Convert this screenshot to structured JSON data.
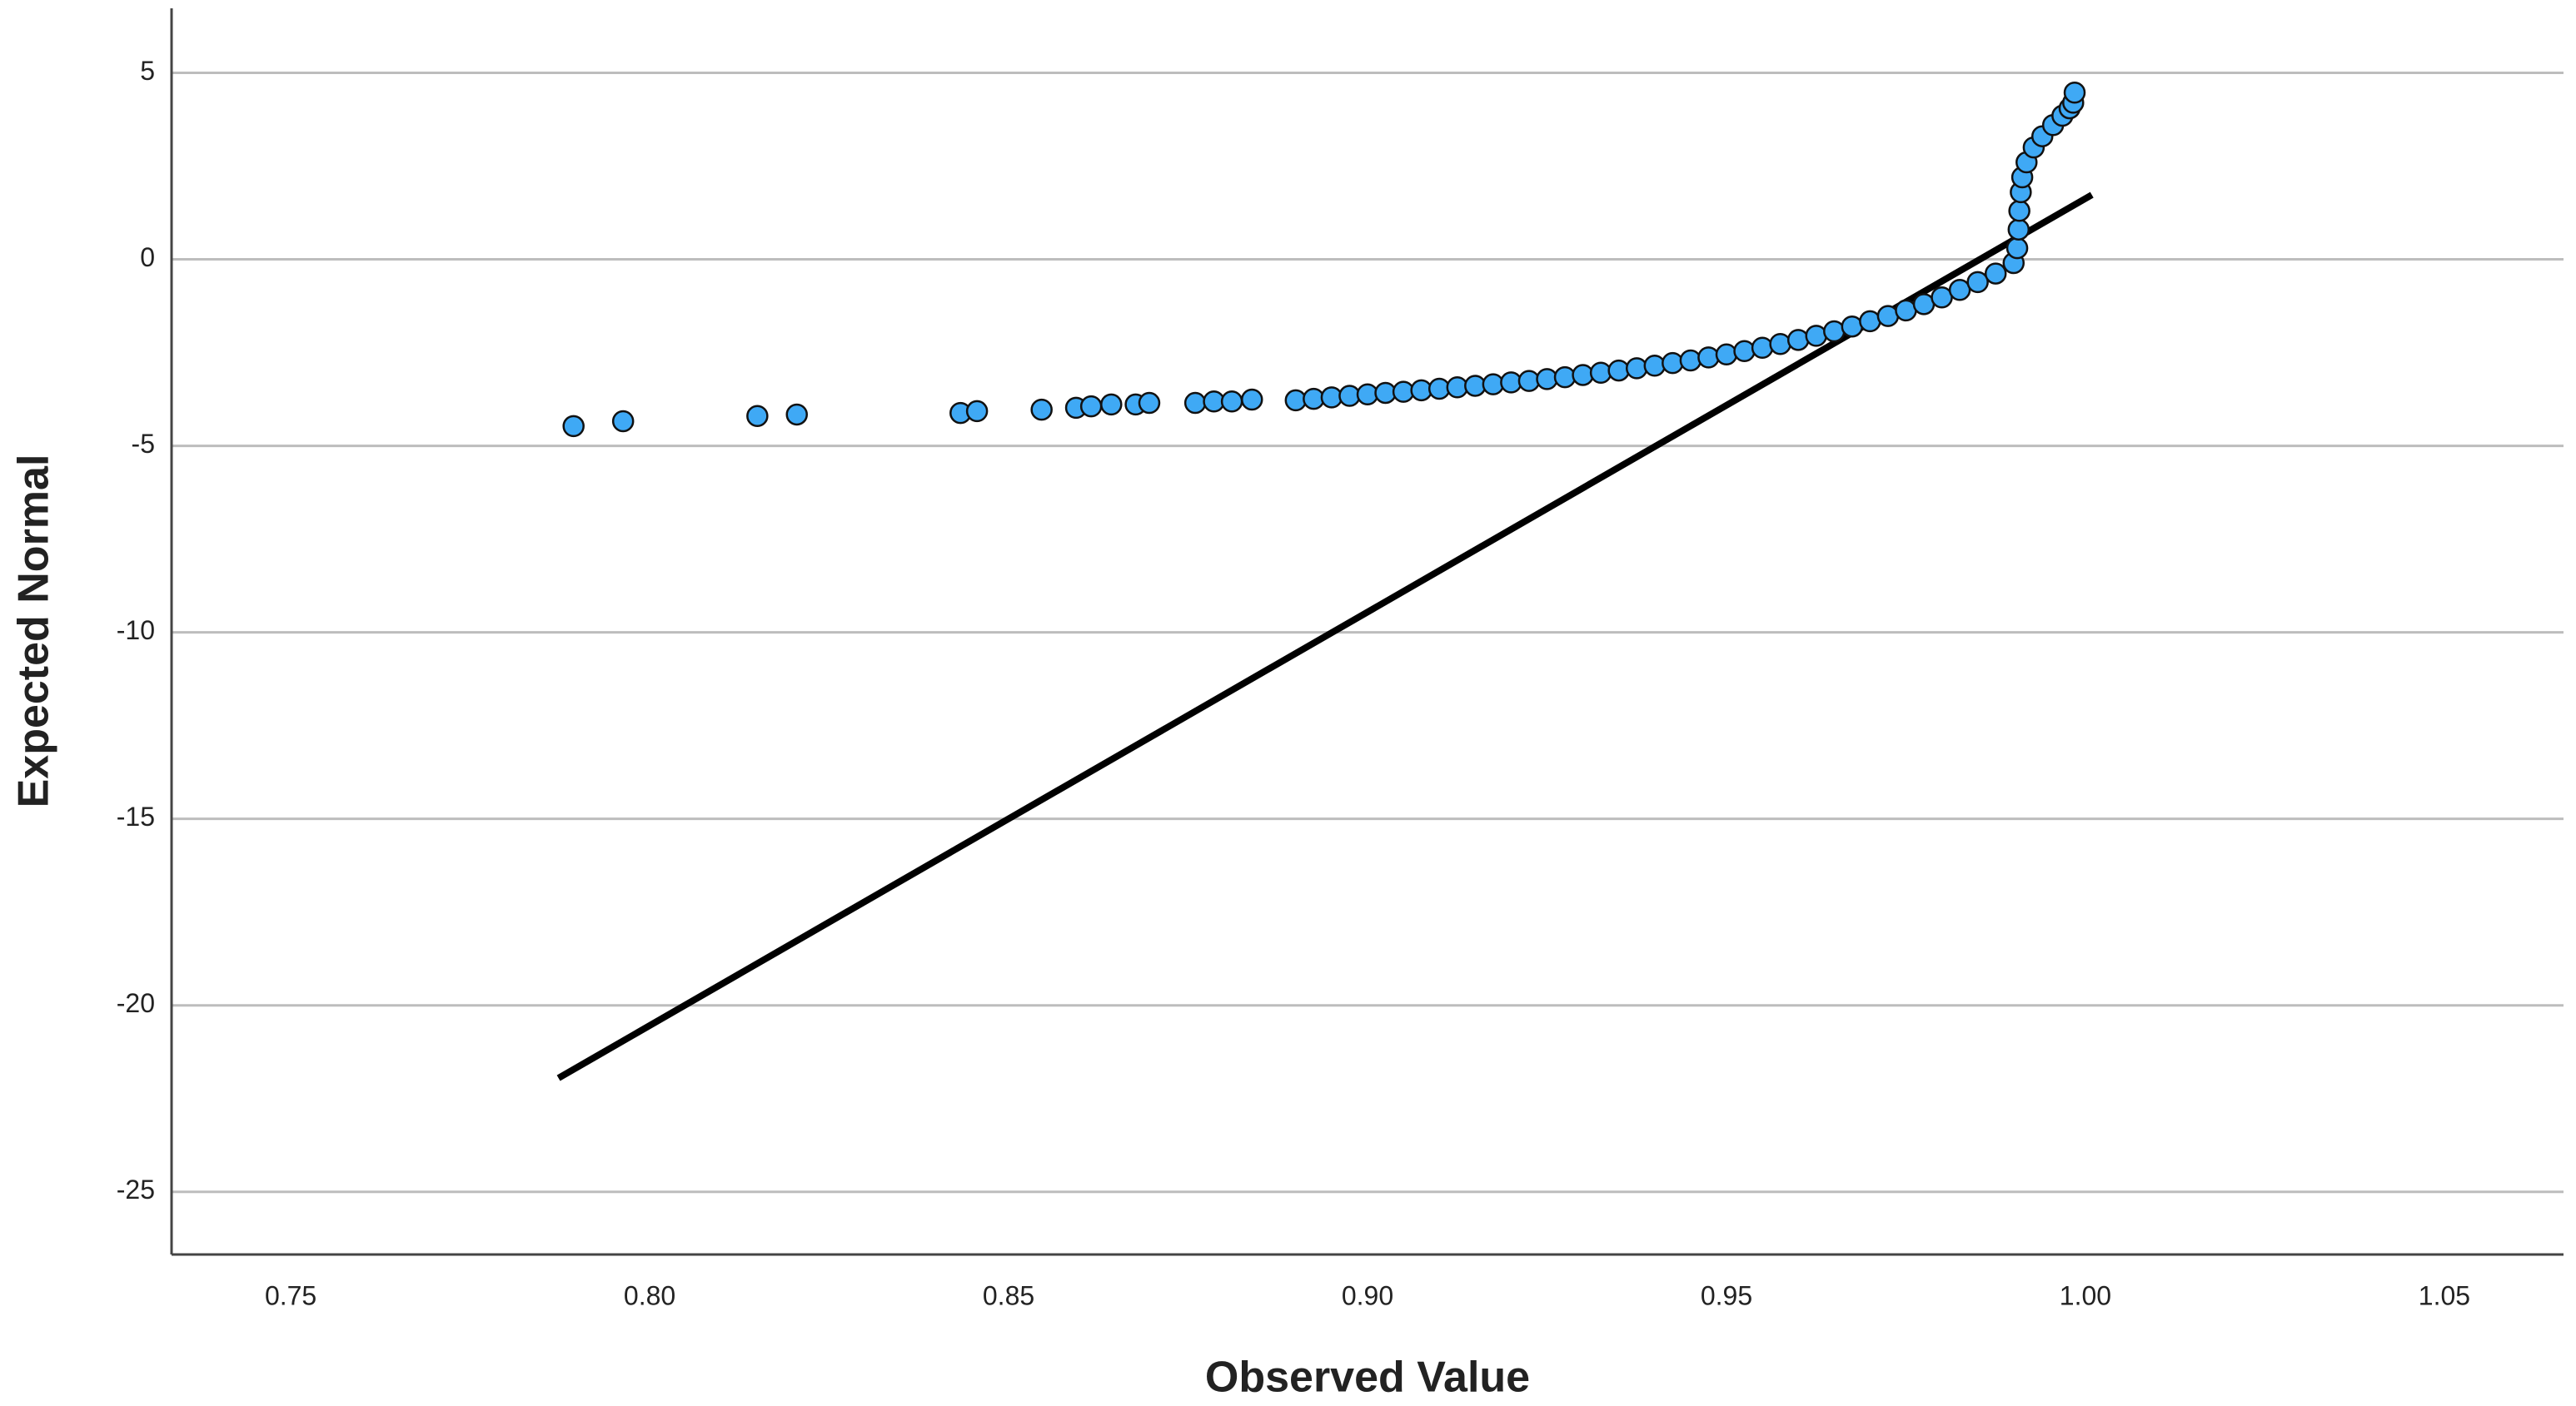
{
  "chart_data": {
    "type": "scatter",
    "x_label": "Observed Value",
    "y_label": "Expected Normal",
    "xlim": [
      0.7334,
      1.0666
    ],
    "ylim": [
      -26.68,
      6.73
    ],
    "xticks": [
      0.75,
      {
        "value": 0.8,
        "label": "0.80"
      },
      0.85,
      {
        "value": 0.9,
        "label": "0.90"
      },
      0.95,
      {
        "value": 1.0,
        "label": "1.00"
      },
      1.05
    ],
    "yticks": [
      5,
      0,
      -5,
      -10,
      -15,
      -20,
      -25
    ],
    "grid": true,
    "color": "#3fa9f5",
    "x": [
      0.7894,
      0.7963,
      0.815,
      0.8205,
      0.8433,
      0.8456,
      0.8546,
      0.8594,
      0.8615,
      0.8643,
      0.8677,
      0.8696,
      0.876,
      0.8786,
      0.8811,
      0.8839,
      0.89,
      0.8925,
      0.895,
      0.8975,
      0.9,
      0.9025,
      0.905,
      0.9075,
      0.91,
      0.9125,
      0.915,
      0.9175,
      0.92,
      0.9225,
      0.925,
      0.9275,
      0.93,
      0.9325,
      0.935,
      0.9375,
      0.94,
      0.9425,
      0.945,
      0.9475,
      0.95,
      0.9525,
      0.955,
      0.9575,
      0.96,
      0.9625,
      0.965,
      0.9675,
      0.97,
      0.9725,
      0.975,
      0.9775,
      0.98,
      0.9825,
      0.985,
      0.9875,
      0.99,
      0.9905,
      0.9907,
      0.9908,
      0.991,
      0.9912,
      0.9918,
      0.9928,
      0.994,
      0.9955,
      0.9968,
      0.9978,
      0.9983,
      0.9985
    ],
    "values": [
      -4.47,
      -4.34,
      -4.2,
      -4.16,
      -4.12,
      -4.07,
      -4.03,
      -3.98,
      -3.94,
      -3.89,
      -3.89,
      -3.85,
      -3.85,
      -3.81,
      -3.81,
      -3.76,
      -3.78,
      -3.74,
      -3.7,
      -3.66,
      -3.62,
      -3.58,
      -3.55,
      -3.51,
      -3.47,
      -3.43,
      -3.39,
      -3.35,
      -3.3,
      -3.26,
      -3.21,
      -3.16,
      -3.1,
      -3.04,
      -2.98,
      -2.92,
      -2.85,
      -2.78,
      -2.71,
      -2.63,
      -2.55,
      -2.46,
      -2.37,
      -2.27,
      -2.16,
      -2.05,
      -1.93,
      -1.8,
      -1.66,
      -1.52,
      -1.37,
      -1.2,
      -1.02,
      -0.82,
      -0.61,
      -0.38,
      -0.1,
      0.3,
      0.8,
      1.3,
      1.8,
      2.2,
      2.6,
      3.0,
      3.3,
      3.6,
      3.85,
      4.05,
      4.2,
      4.47
    ],
    "line": {
      "x": [
        0.7873,
        1.0009
      ],
      "values": [
        -21.95,
        1.73
      ],
      "color": "#000000"
    }
  }
}
